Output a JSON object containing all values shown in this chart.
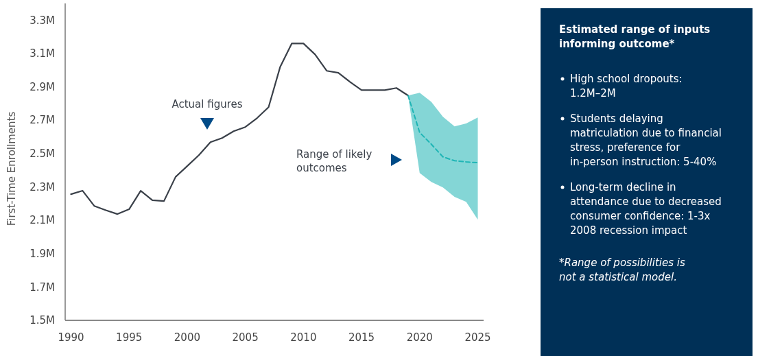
{
  "chart_data": {
    "type": "line",
    "ylabel": "First-Time Enrollments",
    "xlim": [
      1989.5,
      2025.5
    ],
    "xticks": [
      1990,
      1995,
      2000,
      2005,
      2010,
      2015,
      2020,
      2025
    ],
    "ylim": [
      1.5,
      3.4
    ],
    "yticks": [
      {
        "value": 1.5,
        "label": "1.5M"
      },
      {
        "value": 1.7,
        "label": "1.7M"
      },
      {
        "value": 1.9,
        "label": "1.9M"
      },
      {
        "value": 2.1,
        "label": "2.1M"
      },
      {
        "value": 2.3,
        "label": "2.3M"
      },
      {
        "value": 2.5,
        "label": "2.5M"
      },
      {
        "value": 2.7,
        "label": "2.7M"
      },
      {
        "value": 2.9,
        "label": "2.9M"
      },
      {
        "value": 3.1,
        "label": "3.1M"
      },
      {
        "value": 3.3,
        "label": "3.3M"
      }
    ],
    "grid": false,
    "marker": "none",
    "series": [
      {
        "color": "#3a4049",
        "line_style": "solid",
        "x": [
          1990,
          1991,
          1992,
          1993,
          1994,
          1995,
          1996,
          1997,
          1998,
          1999,
          2000,
          2001,
          2002,
          2003,
          2004,
          2005,
          2006,
          2007,
          2008,
          2009,
          2010,
          2011,
          2012,
          2013,
          2014,
          2015,
          2016,
          2017,
          2018,
          2019
        ],
        "values": [
          2.256,
          2.277,
          2.186,
          2.16,
          2.137,
          2.166,
          2.277,
          2.22,
          2.215,
          2.36,
          2.425,
          2.49,
          2.568,
          2.593,
          2.634,
          2.659,
          2.712,
          2.778,
          3.02,
          3.16,
          3.16,
          3.094,
          2.996,
          2.984,
          2.93,
          2.88,
          2.88,
          2.88,
          2.893,
          2.848
        ]
      },
      {
        "color": "#1fb5b5",
        "line_style": "dashed",
        "x": [
          2019,
          2020,
          2021,
          2022,
          2023,
          2024,
          2025
        ],
        "values": [
          2.848,
          2.626,
          2.556,
          2.48,
          2.457,
          2.45,
          2.445
        ],
        "lower": [
          2.848,
          2.383,
          2.33,
          2.297,
          2.24,
          2.21,
          2.104
        ],
        "upper": [
          2.848,
          2.864,
          2.81,
          2.72,
          2.663,
          2.68,
          2.716
        ]
      }
    ],
    "annotations": [
      "Actual figures",
      "Range of likely outcomes",
      "Estimated range of inputs informing outcome*",
      "High school dropouts: 1.2M–2M",
      "Students delaying matriculation due to financial stress, preference for in-person instruction: 5-40%",
      "Long-term decline in attendance due to decreased consumer confidence: 1-3x 2008 recession impact",
      "*Range of possibilities is not a statistical model."
    ]
  }
}
